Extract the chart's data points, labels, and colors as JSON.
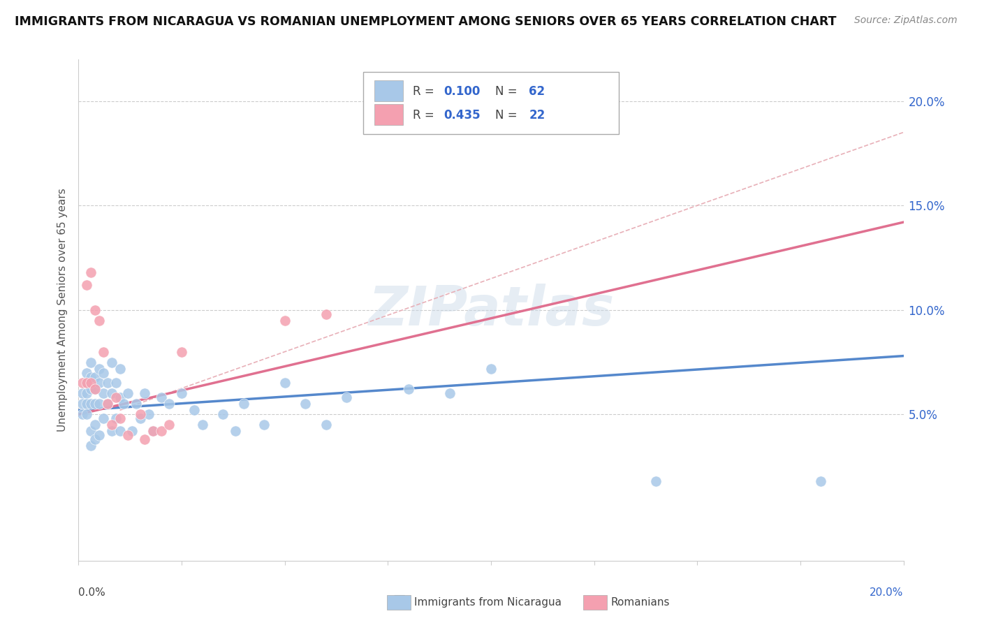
{
  "title": "IMMIGRANTS FROM NICARAGUA VS ROMANIAN UNEMPLOYMENT AMONG SENIORS OVER 65 YEARS CORRELATION CHART",
  "source": "Source: ZipAtlas.com",
  "ylabel": "Unemployment Among Seniors over 65 years",
  "legend_blue_r": "R = 0.100",
  "legend_blue_n": "N = 62",
  "legend_pink_r": "R = 0.435",
  "legend_pink_n": "N = 22",
  "blue_color": "#a8c8e8",
  "pink_color": "#f4a0b0",
  "blue_line_color": "#5588cc",
  "pink_line_color": "#e07090",
  "dashed_line_color": "#e8b0b8",
  "watermark": "ZIPatlas",
  "blue_scatter_x": [
    0.001,
    0.001,
    0.001,
    0.002,
    0.002,
    0.002,
    0.002,
    0.002,
    0.003,
    0.003,
    0.003,
    0.003,
    0.003,
    0.003,
    0.004,
    0.004,
    0.004,
    0.004,
    0.004,
    0.005,
    0.005,
    0.005,
    0.005,
    0.006,
    0.006,
    0.006,
    0.007,
    0.007,
    0.008,
    0.008,
    0.008,
    0.009,
    0.009,
    0.01,
    0.01,
    0.01,
    0.011,
    0.012,
    0.013,
    0.014,
    0.015,
    0.016,
    0.017,
    0.018,
    0.02,
    0.022,
    0.025,
    0.028,
    0.03,
    0.035,
    0.038,
    0.04,
    0.045,
    0.05,
    0.055,
    0.06,
    0.065,
    0.08,
    0.09,
    0.1,
    0.14,
    0.18
  ],
  "blue_scatter_y": [
    0.06,
    0.055,
    0.05,
    0.07,
    0.065,
    0.06,
    0.055,
    0.05,
    0.075,
    0.068,
    0.062,
    0.055,
    0.042,
    0.035,
    0.068,
    0.062,
    0.055,
    0.045,
    0.038,
    0.072,
    0.065,
    0.055,
    0.04,
    0.07,
    0.06,
    0.048,
    0.065,
    0.055,
    0.075,
    0.06,
    0.042,
    0.065,
    0.048,
    0.072,
    0.058,
    0.042,
    0.055,
    0.06,
    0.042,
    0.055,
    0.048,
    0.06,
    0.05,
    0.042,
    0.058,
    0.055,
    0.06,
    0.052,
    0.045,
    0.05,
    0.042,
    0.055,
    0.045,
    0.065,
    0.055,
    0.045,
    0.058,
    0.062,
    0.06,
    0.072,
    0.018,
    0.018
  ],
  "pink_scatter_x": [
    0.001,
    0.002,
    0.002,
    0.003,
    0.003,
    0.004,
    0.004,
    0.005,
    0.006,
    0.007,
    0.008,
    0.009,
    0.01,
    0.012,
    0.015,
    0.016,
    0.018,
    0.02,
    0.022,
    0.025,
    0.05,
    0.06
  ],
  "pink_scatter_y": [
    0.065,
    0.065,
    0.112,
    0.065,
    0.118,
    0.062,
    0.1,
    0.095,
    0.08,
    0.055,
    0.045,
    0.058,
    0.048,
    0.04,
    0.05,
    0.038,
    0.042,
    0.042,
    0.045,
    0.08,
    0.095,
    0.098
  ],
  "xlim": [
    0.0,
    0.2
  ],
  "ylim": [
    -0.02,
    0.22
  ],
  "yticks": [
    0.0,
    0.05,
    0.1,
    0.15,
    0.2
  ],
  "ytick_labels": [
    "",
    "5.0%",
    "10.0%",
    "15.0%",
    "20.0%"
  ],
  "blue_trend_x": [
    0.0,
    0.2
  ],
  "blue_trend_y": [
    0.052,
    0.078
  ],
  "pink_trend_x": [
    0.0,
    0.2
  ],
  "pink_trend_y": [
    0.05,
    0.142
  ],
  "diag_trend_x": [
    0.01,
    0.2
  ],
  "diag_trend_y": [
    0.052,
    0.185
  ]
}
